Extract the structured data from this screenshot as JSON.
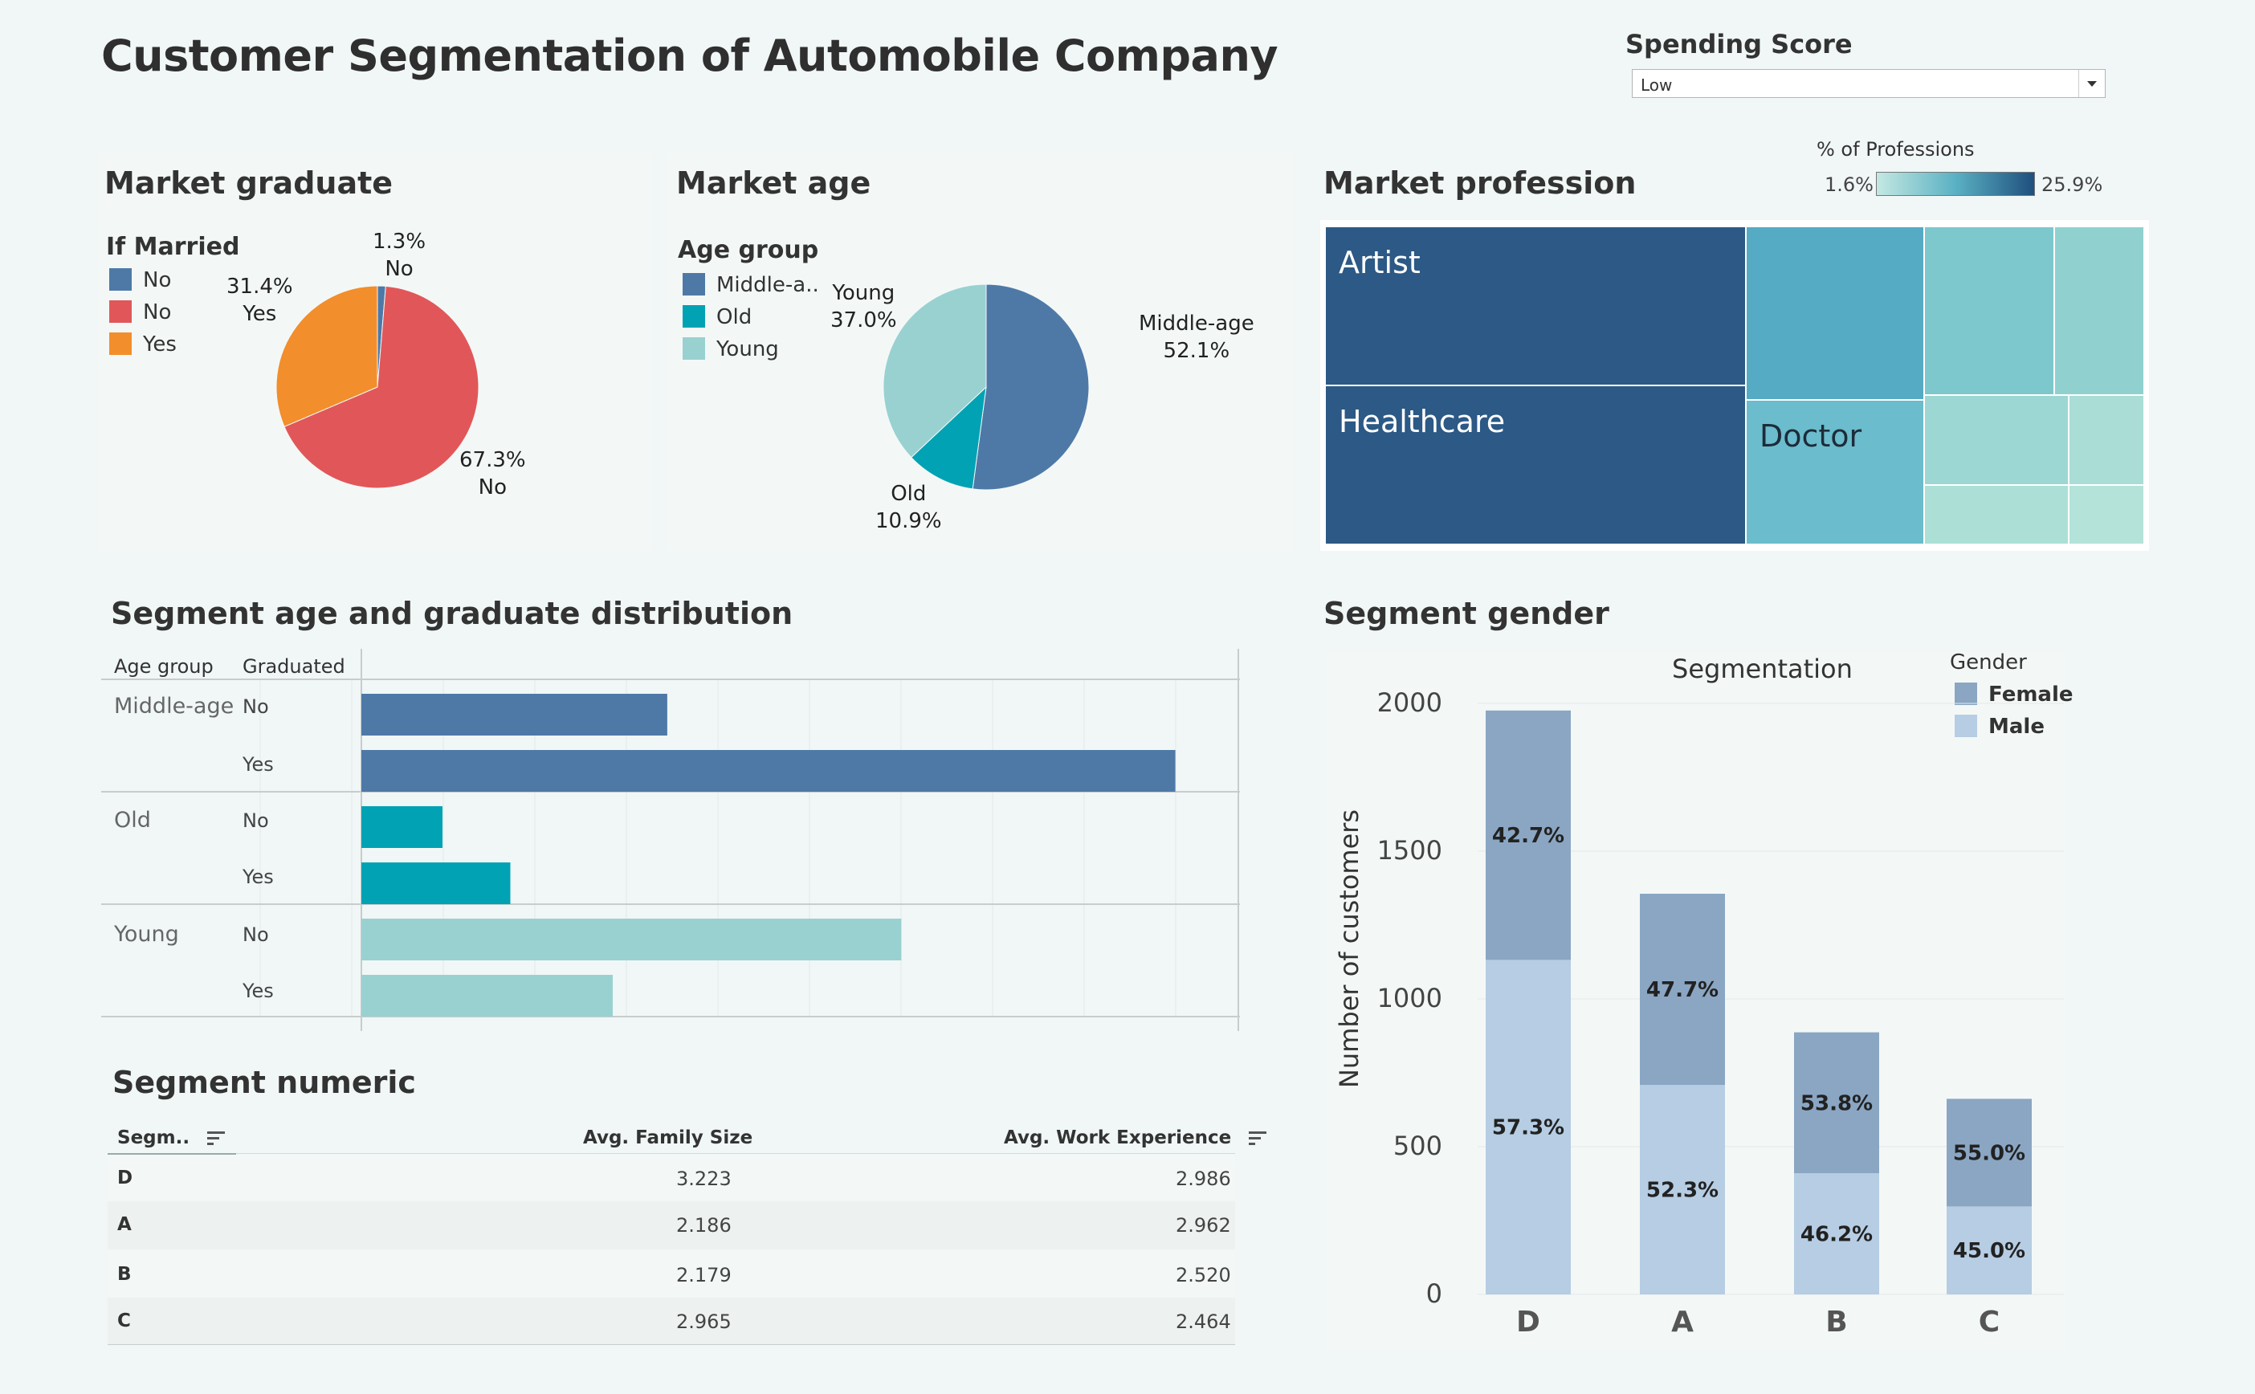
{
  "dashboard": {
    "title": "Customer Segmentation of Automobile Company"
  },
  "filter": {
    "label": "Spending Score",
    "selected": "Low"
  },
  "market_graduate": {
    "title": "Market graduate",
    "legend_title": "If Married",
    "legend": [
      {
        "label": "No",
        "color": "#4e79a7"
      },
      {
        "label": "No",
        "color": "#e15759"
      },
      {
        "label": "Yes",
        "color": "#f28e2b"
      }
    ],
    "labels": {
      "small_pct": "1.3%",
      "small_name": "No",
      "yes_pct": "31.4%",
      "yes_name": "Yes",
      "no_pct": "67.3%",
      "no_name": "No"
    }
  },
  "market_age": {
    "title": "Market age",
    "legend_title": "Age group",
    "legend": [
      {
        "label": "Middle-a..",
        "color": "#4e79a7"
      },
      {
        "label": "Old",
        "color": "#00a2b4"
      },
      {
        "label": "Young",
        "color": "#99d1d1"
      }
    ],
    "labels": {
      "young_name": "Young",
      "young_pct": "37.0%",
      "middle_name": "Middle-age",
      "middle_pct": "52.1%",
      "old_name": "Old",
      "old_pct": "10.9%"
    }
  },
  "market_profession": {
    "title": "Market profession",
    "color_legend": {
      "title": "% of Professions",
      "min": "1.6%",
      "max": "25.9%"
    },
    "labels": {
      "artist": "Artist",
      "healthcare": "Healthcare",
      "doctor": "Doctor"
    }
  },
  "segment_age_grad": {
    "title": "Segment age and graduate distribution",
    "headers": {
      "age_group": "Age group",
      "graduated": "Graduated"
    },
    "groups": [
      {
        "name": "Middle-age",
        "rows": [
          {
            "label": "No"
          },
          {
            "label": "Yes"
          }
        ]
      },
      {
        "name": "Old",
        "rows": [
          {
            "label": "No"
          },
          {
            "label": "Yes"
          }
        ]
      },
      {
        "name": "Young",
        "rows": [
          {
            "label": "No"
          },
          {
            "label": "Yes"
          }
        ]
      }
    ]
  },
  "segment_numeric": {
    "title": "Segment numeric",
    "headers": {
      "segment": "Segm..",
      "family": "Avg. Family Size",
      "work": "Avg. Work Experience"
    },
    "rows": [
      {
        "segment": "D",
        "family": "3.223",
        "work": "2.986"
      },
      {
        "segment": "A",
        "family": "2.186",
        "work": "2.962"
      },
      {
        "segment": "B",
        "family": "2.179",
        "work": "2.520"
      },
      {
        "segment": "C",
        "family": "2.965",
        "work": "2.464"
      }
    ]
  },
  "segment_gender": {
    "title": "Segment gender",
    "chart_title": "Segmentation",
    "ylabel": "Number of customers",
    "legend_title": "Gender",
    "legend": [
      {
        "label": "Female",
        "color": "#8aa6c3"
      },
      {
        "label": "Male",
        "color": "#b6cde3"
      }
    ]
  },
  "chart_data": [
    {
      "type": "pie",
      "title": "Market graduate",
      "legend_title": "If Married",
      "slices": [
        {
          "label": "No",
          "value": 1.3,
          "color": "#4e79a7"
        },
        {
          "label": "No",
          "value": 67.3,
          "color": "#e15759"
        },
        {
          "label": "Yes",
          "value": 31.4,
          "color": "#f28e2b"
        }
      ]
    },
    {
      "type": "pie",
      "title": "Market age",
      "legend_title": "Age group",
      "slices": [
        {
          "label": "Middle-age",
          "value": 52.1,
          "color": "#4e79a7"
        },
        {
          "label": "Old",
          "value": 10.9,
          "color": "#00a2b4"
        },
        {
          "label": "Young",
          "value": 37.0,
          "color": "#99d1d1"
        }
      ]
    },
    {
      "type": "heatmap",
      "title": "Market profession",
      "color_scale": {
        "min": 1.6,
        "max": 25.9,
        "min_color": "#c4e8e2",
        "max_color": "#1f4f7e"
      },
      "cells": [
        {
          "label": "Artist",
          "color": "#2c5985"
        },
        {
          "label": "Healthcare",
          "color": "#2c5985"
        },
        {
          "label": "",
          "color": "#55abc3"
        },
        {
          "label": "Doctor",
          "color": "#6bbccc"
        },
        {
          "label": "",
          "color": "#7cc8cd"
        },
        {
          "label": "",
          "color": "#90d1d0"
        },
        {
          "label": "",
          "color": "#9dd7d3"
        },
        {
          "label": "",
          "color": "#a9ddd6"
        },
        {
          "label": "",
          "color": "#ace0d6"
        },
        {
          "label": "",
          "color": "#b4e3da"
        }
      ]
    },
    {
      "type": "bar",
      "orientation": "horizontal",
      "title": "Segment age and graduate distribution",
      "categories": [
        "Middle-age / No",
        "Middle-age / Yes",
        "Old / No",
        "Old / Yes",
        "Young / No",
        "Young / Yes"
      ],
      "values": [
        230,
        612,
        61,
        112,
        406,
        189
      ],
      "colors": [
        "#4e79a7",
        "#4e79a7",
        "#00a2b4",
        "#00a2b4",
        "#99d1d1",
        "#99d1d1"
      ],
      "xlim": [
        0,
        640
      ]
    },
    {
      "type": "bar",
      "stacked": true,
      "title": "Segmentation",
      "ylabel": "Number of customers",
      "categories": [
        "D",
        "A",
        "B",
        "C"
      ],
      "ylim": [
        0,
        2000
      ],
      "y_ticks": [
        0,
        500,
        1000,
        1500,
        2000
      ],
      "totals": [
        1976,
        1356,
        887,
        662
      ],
      "series": [
        {
          "name": "Male",
          "color": "#b6cde3",
          "values": [
            1132,
            709,
            410,
            298
          ],
          "labels": [
            "57.3%",
            "52.3%",
            "46.2%",
            "45.0%"
          ]
        },
        {
          "name": "Female",
          "color": "#8aa6c3",
          "values": [
            844,
            647,
            477,
            364
          ],
          "labels": [
            "42.7%",
            "47.7%",
            "53.8%",
            "55.0%"
          ]
        }
      ]
    }
  ]
}
